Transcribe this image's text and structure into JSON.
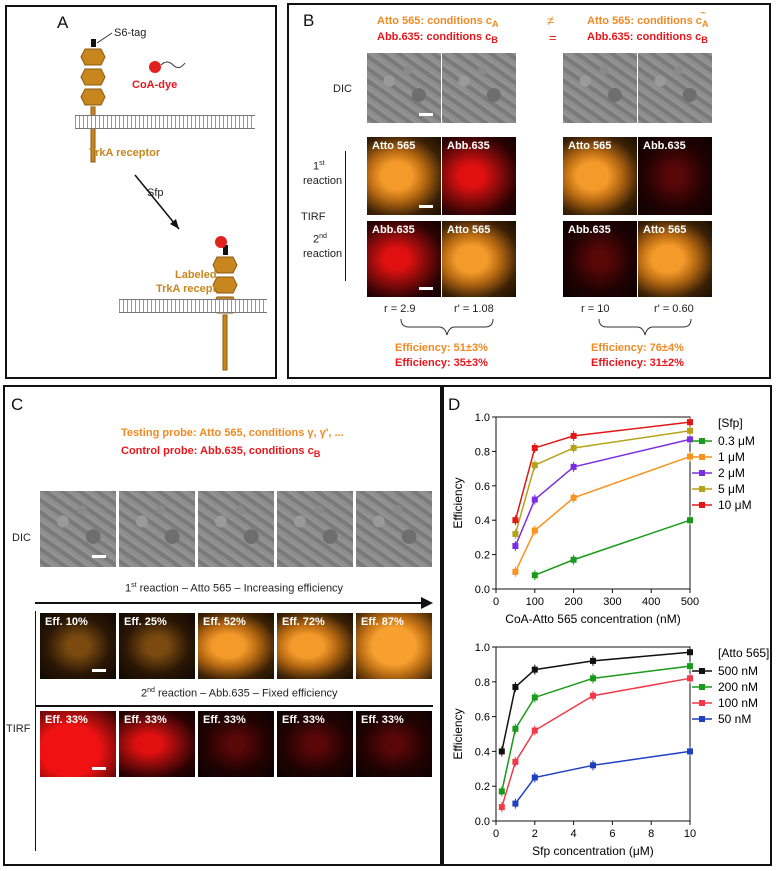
{
  "panel_a": {
    "label": "A",
    "s6_tag": "S6-tag",
    "coa_dye": "CoA-dye",
    "receptor": "TrkA receptor",
    "enzyme": "Sfp",
    "labeled_line1": "Labeled",
    "labeled_line2": "TrkA receptor"
  },
  "panel_b": {
    "label": "B",
    "header_left_1": "Atto 565: conditions c",
    "header_left_1_sub": "A",
    "header_left_2": "Abb.635: conditions c",
    "header_left_2_sub": "B",
    "neq": "≠",
    "eq": "=",
    "header_right_1": "Atto 565: conditions c",
    "header_right_1_sub": "A",
    "header_right_1_accent": "~",
    "header_right_2": "Abb.635: conditions c",
    "header_right_2_sub": "B",
    "dic": "DIC",
    "reaction1_sup": "st",
    "reaction1_num": "1",
    "reaction1_word": "reaction",
    "reaction2_sup": "nd",
    "reaction2_num": "2",
    "reaction2_word": "reaction",
    "tirf": "TIRF",
    "atto": "Atto 565",
    "abb": "Abb.635",
    "r_left": "r = 2.9",
    "rp_left": "r' = 1.08",
    "r_right": "r = 10",
    "rp_right": "r' = 0.60",
    "eff_left_o": "Efficiency: 51±3%",
    "eff_left_r": "Efficiency: 35±3%",
    "eff_right_o": "Efficiency: 76±4%",
    "eff_right_r": "Efficiency: 31±2%"
  },
  "panel_c": {
    "label": "C",
    "testing": "Testing probe: Atto 565, conditions γ, γ', ...",
    "control": "Control probe: Abb.635, conditions c",
    "control_sub": "B",
    "dic": "DIC",
    "arrow_text_num": "1",
    "arrow_text_sup": "st",
    "arrow_text": " reaction – Atto 565 – Increasing efficiency",
    "fixed_text_num": "2",
    "fixed_text_sup": "nd",
    "fixed_text": " reaction – Abb.635 – Fixed efficiency",
    "tirf": "TIRF",
    "top_effs": [
      "Eff. 10%",
      "Eff. 25%",
      "Eff. 52%",
      "Eff. 72%",
      "Eff. 87%"
    ],
    "bottom_effs": [
      "Eff. 33%",
      "Eff. 33%",
      "Eff. 33%",
      "Eff. 33%",
      "Eff. 33%"
    ]
  },
  "panel_d": {
    "label": "D"
  },
  "chart_data": [
    {
      "type": "line",
      "xlabel": "CoA-Atto 565 concentration (nM)",
      "ylabel": "Efficiency",
      "xlim": [
        0,
        500
      ],
      "ylim": [
        0,
        1.0
      ],
      "xticks": [
        "0",
        "100",
        "200",
        "300",
        "400",
        "500"
      ],
      "yticks": [
        "0.0",
        "0.2",
        "0.4",
        "0.6",
        "0.8",
        "1.0"
      ],
      "legend_title": "[Sfp]",
      "series": [
        {
          "name": "0.3 μM",
          "color": "#1a9a1a",
          "x": [
            100,
            200,
            500
          ],
          "y": [
            0.08,
            0.17,
            0.4
          ]
        },
        {
          "name": "1 μM",
          "color": "#f7931e",
          "x": [
            50,
            100,
            200,
            500
          ],
          "y": [
            0.1,
            0.34,
            0.53,
            0.77
          ]
        },
        {
          "name": "2 μM",
          "color": "#7b2ee0",
          "x": [
            50,
            100,
            200,
            500
          ],
          "y": [
            0.25,
            0.52,
            0.71,
            0.87
          ]
        },
        {
          "name": "5 μM",
          "color": "#b5a41a",
          "x": [
            50,
            100,
            200,
            500
          ],
          "y": [
            0.32,
            0.72,
            0.82,
            0.92
          ]
        },
        {
          "name": "10 μM",
          "color": "#e01818",
          "x": [
            50,
            100,
            200,
            500
          ],
          "y": [
            0.4,
            0.82,
            0.89,
            0.97
          ]
        }
      ]
    },
    {
      "type": "line",
      "xlabel": "Sfp concentration (μM)",
      "ylabel": "Efficiency",
      "xlim": [
        0,
        10
      ],
      "ylim": [
        0,
        1.0
      ],
      "xticks": [
        "0",
        "2",
        "4",
        "6",
        "8",
        "10"
      ],
      "yticks": [
        "0.0",
        "0.2",
        "0.4",
        "0.6",
        "0.8",
        "1.0"
      ],
      "legend_title": "[Atto 565]",
      "series": [
        {
          "name": "500 nM",
          "color": "#111111",
          "x": [
            0.3,
            1,
            2,
            5,
            10
          ],
          "y": [
            0.4,
            0.77,
            0.87,
            0.92,
            0.97
          ]
        },
        {
          "name": "200 nM",
          "color": "#1a9a1a",
          "x": [
            0.3,
            1,
            2,
            5,
            10
          ],
          "y": [
            0.17,
            0.53,
            0.71,
            0.82,
            0.89
          ]
        },
        {
          "name": "100 nM",
          "color": "#f03a4a",
          "x": [
            0.3,
            1,
            2,
            5,
            10
          ],
          "y": [
            0.08,
            0.34,
            0.52,
            0.72,
            0.82
          ]
        },
        {
          "name": "50 nM",
          "color": "#1e3fc0",
          "x": [
            1,
            2,
            5,
            10
          ],
          "y": [
            0.1,
            0.25,
            0.32,
            0.4
          ]
        }
      ]
    }
  ]
}
